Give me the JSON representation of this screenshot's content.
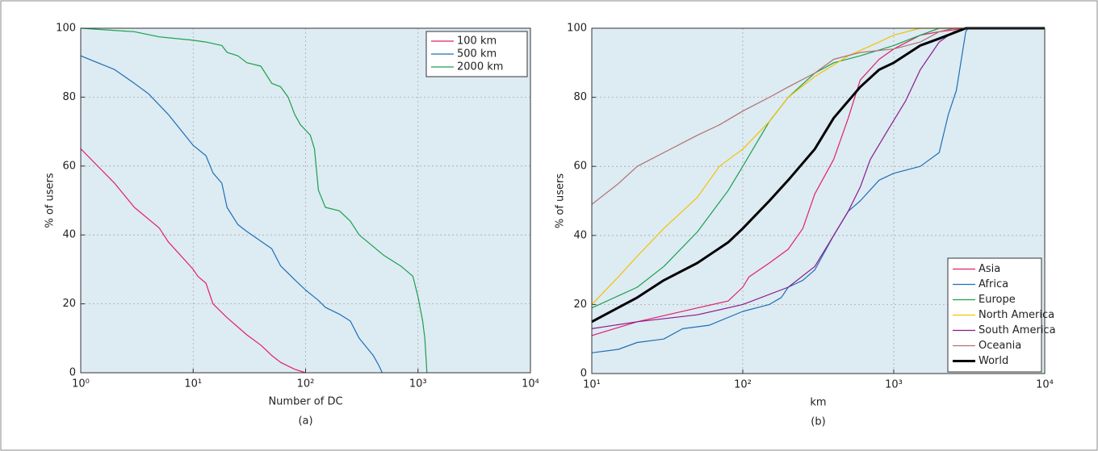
{
  "chart_data": [
    {
      "type": "line",
      "caption": "(a)",
      "xlabel": "Number of DC",
      "ylabel": "% of users",
      "log_x": true,
      "grid": true,
      "legend": "upper right",
      "background": "#ddebf3",
      "xlim": [
        1,
        10000
      ],
      "ylim": [
        0,
        100
      ],
      "xticks": [
        {
          "value": 1,
          "label": "10⁰"
        },
        {
          "value": 10,
          "label": "10¹"
        },
        {
          "value": 100,
          "label": "10²"
        },
        {
          "value": 1000,
          "label": "10³"
        },
        {
          "value": 10000,
          "label": "10⁴"
        }
      ],
      "yticks": [
        0,
        20,
        40,
        60,
        80,
        100
      ],
      "series": [
        {
          "name": "100 km",
          "color": "#e0206a",
          "x": [
            1,
            2,
            3,
            5,
            6,
            10,
            11,
            13,
            15,
            20,
            30,
            40,
            50,
            60,
            80,
            100
          ],
          "values": [
            65,
            55,
            48,
            42,
            38,
            30,
            28,
            26,
            20,
            16,
            11,
            8,
            5,
            3,
            1,
            0
          ]
        },
        {
          "name": "500 km",
          "color": "#1f6fb4",
          "x": [
            1,
            2,
            3,
            4,
            6,
            10,
            13,
            15,
            18,
            20,
            25,
            30,
            50,
            60,
            80,
            100,
            130,
            150,
            200,
            250,
            300,
            400,
            450,
            480
          ],
          "values": [
            92,
            88,
            84,
            81,
            75,
            66,
            63,
            58,
            55,
            48,
            43,
            41,
            36,
            31,
            27,
            24,
            21,
            19,
            17,
            15,
            10,
            5,
            2,
            0
          ]
        },
        {
          "name": "2000 km",
          "color": "#1aa04a",
          "x": [
            1,
            3,
            5,
            10,
            13,
            18,
            20,
            25,
            30,
            40,
            50,
            60,
            70,
            80,
            90,
            110,
            120,
            130,
            150,
            200,
            250,
            300,
            500,
            700,
            900,
            1000,
            1100,
            1150,
            1200
          ],
          "values": [
            100,
            99,
            97.5,
            96.5,
            96,
            95,
            93,
            92,
            90,
            89,
            84,
            83,
            80,
            75,
            72,
            69,
            65,
            53,
            48,
            47,
            44,
            40,
            34,
            31,
            28,
            22,
            15,
            10,
            0
          ]
        }
      ]
    },
    {
      "type": "line",
      "caption": "(b)",
      "xlabel": "km",
      "ylabel": "% of users",
      "log_x": true,
      "grid": true,
      "legend": "lower right",
      "background": "#ddebf3",
      "xlim": [
        10,
        10000
      ],
      "ylim": [
        0,
        100
      ],
      "xticks": [
        {
          "value": 10,
          "label": "10¹"
        },
        {
          "value": 100,
          "label": "10²"
        },
        {
          "value": 1000,
          "label": "10³"
        },
        {
          "value": 10000,
          "label": "10⁴"
        }
      ],
      "yticks": [
        0,
        20,
        40,
        60,
        80,
        100
      ],
      "series": [
        {
          "name": "Asia",
          "color": "#e0206a",
          "x": [
            10,
            20,
            50,
            80,
            100,
            110,
            150,
            200,
            250,
            300,
            400,
            500,
            600,
            800,
            1000,
            1500,
            2000,
            3000,
            10000
          ],
          "values": [
            11,
            15,
            19,
            21,
            25,
            28,
            32,
            36,
            42,
            52,
            62,
            74,
            85,
            91,
            94,
            98,
            99,
            100,
            100
          ]
        },
        {
          "name": "Africa",
          "color": "#1f6fb4",
          "x": [
            10,
            15,
            20,
            30,
            40,
            60,
            100,
            150,
            180,
            200,
            250,
            300,
            400,
            500,
            600,
            800,
            1000,
            1500,
            2000,
            2300,
            2600,
            3000,
            3100,
            10000
          ],
          "values": [
            6,
            7,
            9,
            10,
            13,
            14,
            18,
            20,
            22,
            25,
            27,
            30,
            40,
            47,
            50,
            56,
            58,
            60,
            64,
            75,
            82,
            99,
            100,
            100
          ]
        },
        {
          "name": "Europe",
          "color": "#1aa04a",
          "x": [
            10,
            20,
            30,
            50,
            80,
            100,
            150,
            200,
            300,
            400,
            600,
            1000,
            1500,
            2000,
            10000
          ],
          "values": [
            19,
            25,
            31,
            41,
            53,
            60,
            73,
            80,
            87,
            90,
            92,
            95,
            98,
            100,
            100
          ]
        },
        {
          "name": "North America",
          "color": "#f2c200",
          "x": [
            10,
            15,
            20,
            30,
            50,
            70,
            100,
            150,
            200,
            300,
            500,
            800,
            1000,
            1500,
            10000
          ],
          "values": [
            20,
            28,
            34,
            42,
            51,
            60,
            65,
            73,
            80,
            86,
            92,
            96,
            98,
            100,
            100
          ]
        },
        {
          "name": "South America",
          "color": "#8b1a8b",
          "x": [
            10,
            20,
            50,
            100,
            200,
            300,
            400,
            500,
            600,
            700,
            900,
            1200,
            1500,
            2000,
            2500,
            3000,
            10000
          ],
          "values": [
            13,
            15,
            17,
            20,
            25,
            31,
            40,
            47,
            54,
            62,
            70,
            79,
            88,
            96,
            99,
            100,
            100
          ]
        },
        {
          "name": "Oceania",
          "color": "#b07070",
          "x": [
            10,
            15,
            20,
            30,
            50,
            70,
            100,
            150,
            200,
            300,
            400,
            600,
            1000,
            1500,
            2000,
            2500,
            10000
          ],
          "values": [
            49,
            55,
            60,
            64,
            69,
            72,
            76,
            80,
            83,
            87,
            91,
            93,
            94,
            96,
            99,
            100,
            100
          ]
        },
        {
          "name": "World",
          "color": "#000000",
          "linewidth": 3,
          "x": [
            10,
            20,
            30,
            50,
            80,
            100,
            150,
            200,
            300,
            400,
            600,
            800,
            1000,
            1500,
            2000,
            3000,
            10000
          ],
          "values": [
            15,
            22,
            27,
            32,
            38,
            42,
            50,
            56,
            65,
            74,
            83,
            88,
            90,
            95,
            97,
            100,
            100
          ]
        }
      ]
    }
  ]
}
